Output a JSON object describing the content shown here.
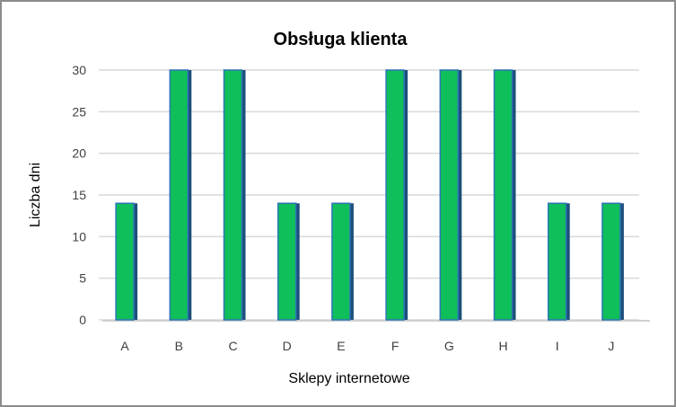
{
  "chart_data": {
    "type": "bar",
    "title": "Obsługa klienta",
    "xlabel": "Sklepy internetowe",
    "ylabel": "Liczba dni",
    "categories": [
      "A",
      "B",
      "C",
      "D",
      "E",
      "F",
      "G",
      "H",
      "I",
      "J"
    ],
    "values": [
      14,
      30,
      30,
      14,
      14,
      30,
      30,
      30,
      14,
      14
    ],
    "ylim": [
      0,
      30
    ],
    "yticks": [
      0,
      5,
      10,
      15,
      20,
      25,
      30
    ],
    "grid": true,
    "legend": "none",
    "colors": {
      "bar_front": "#0fbf5a",
      "bar_side": "#1c4f7a",
      "bar_outline": "#2e75b6",
      "grid": "#d9d9d9"
    }
  }
}
